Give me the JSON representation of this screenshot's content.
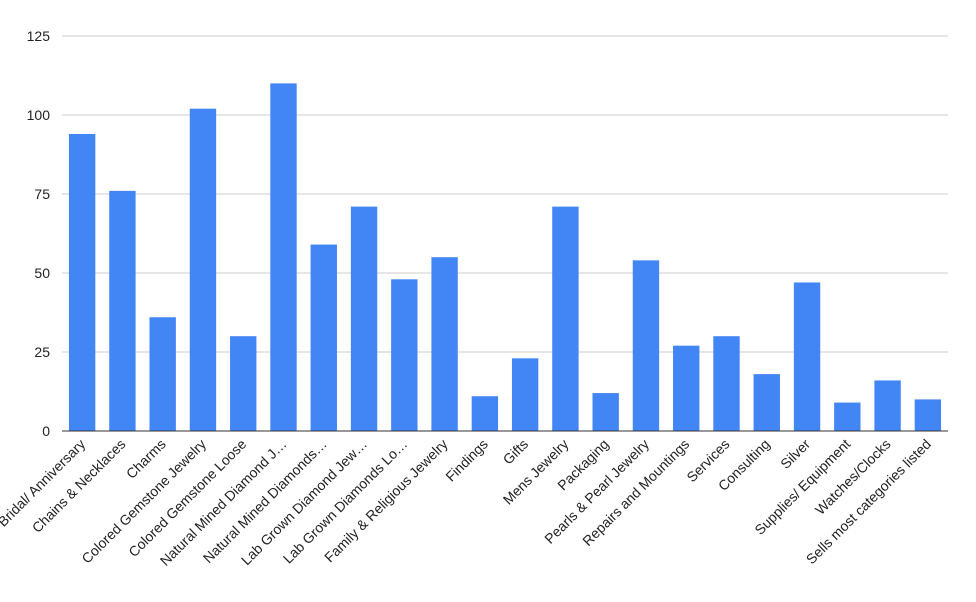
{
  "chart_data": {
    "type": "bar",
    "categories": [
      "Bridal/ Anniversary",
      "Chains & Necklaces",
      "Charms",
      "Colored Gemstone Jewelry",
      "Colored Gemstone Loose",
      "Natural Mined Diamond J…",
      "Natural Mined Diamonds…",
      "Lab Grown Diamond Jew…",
      "Lab Grown Diamonds Lo…",
      "Family & Religious Jewelry",
      "Findings",
      "Gifts",
      "Mens Jewelry",
      "Packaging",
      "Pearls & Pearl Jewelry",
      "Repairs and Mountings",
      "Services",
      "Consulting",
      "Silver",
      "Supplies/ Equipment",
      "Watches/Clocks",
      "Sells most categories listed"
    ],
    "values": [
      94,
      76,
      36,
      102,
      30,
      110,
      59,
      71,
      48,
      55,
      11,
      23,
      71,
      12,
      54,
      27,
      30,
      18,
      47,
      9,
      16,
      10
    ],
    "title": "",
    "xlabel": "",
    "ylabel": "",
    "ylim": [
      0,
      125
    ],
    "yticks": [
      0,
      25,
      50,
      75,
      100,
      125
    ],
    "grid": true,
    "legend": "none",
    "bar_color": "#4285f4",
    "grid_color": "#cccccc",
    "axis_color": "#333333"
  }
}
